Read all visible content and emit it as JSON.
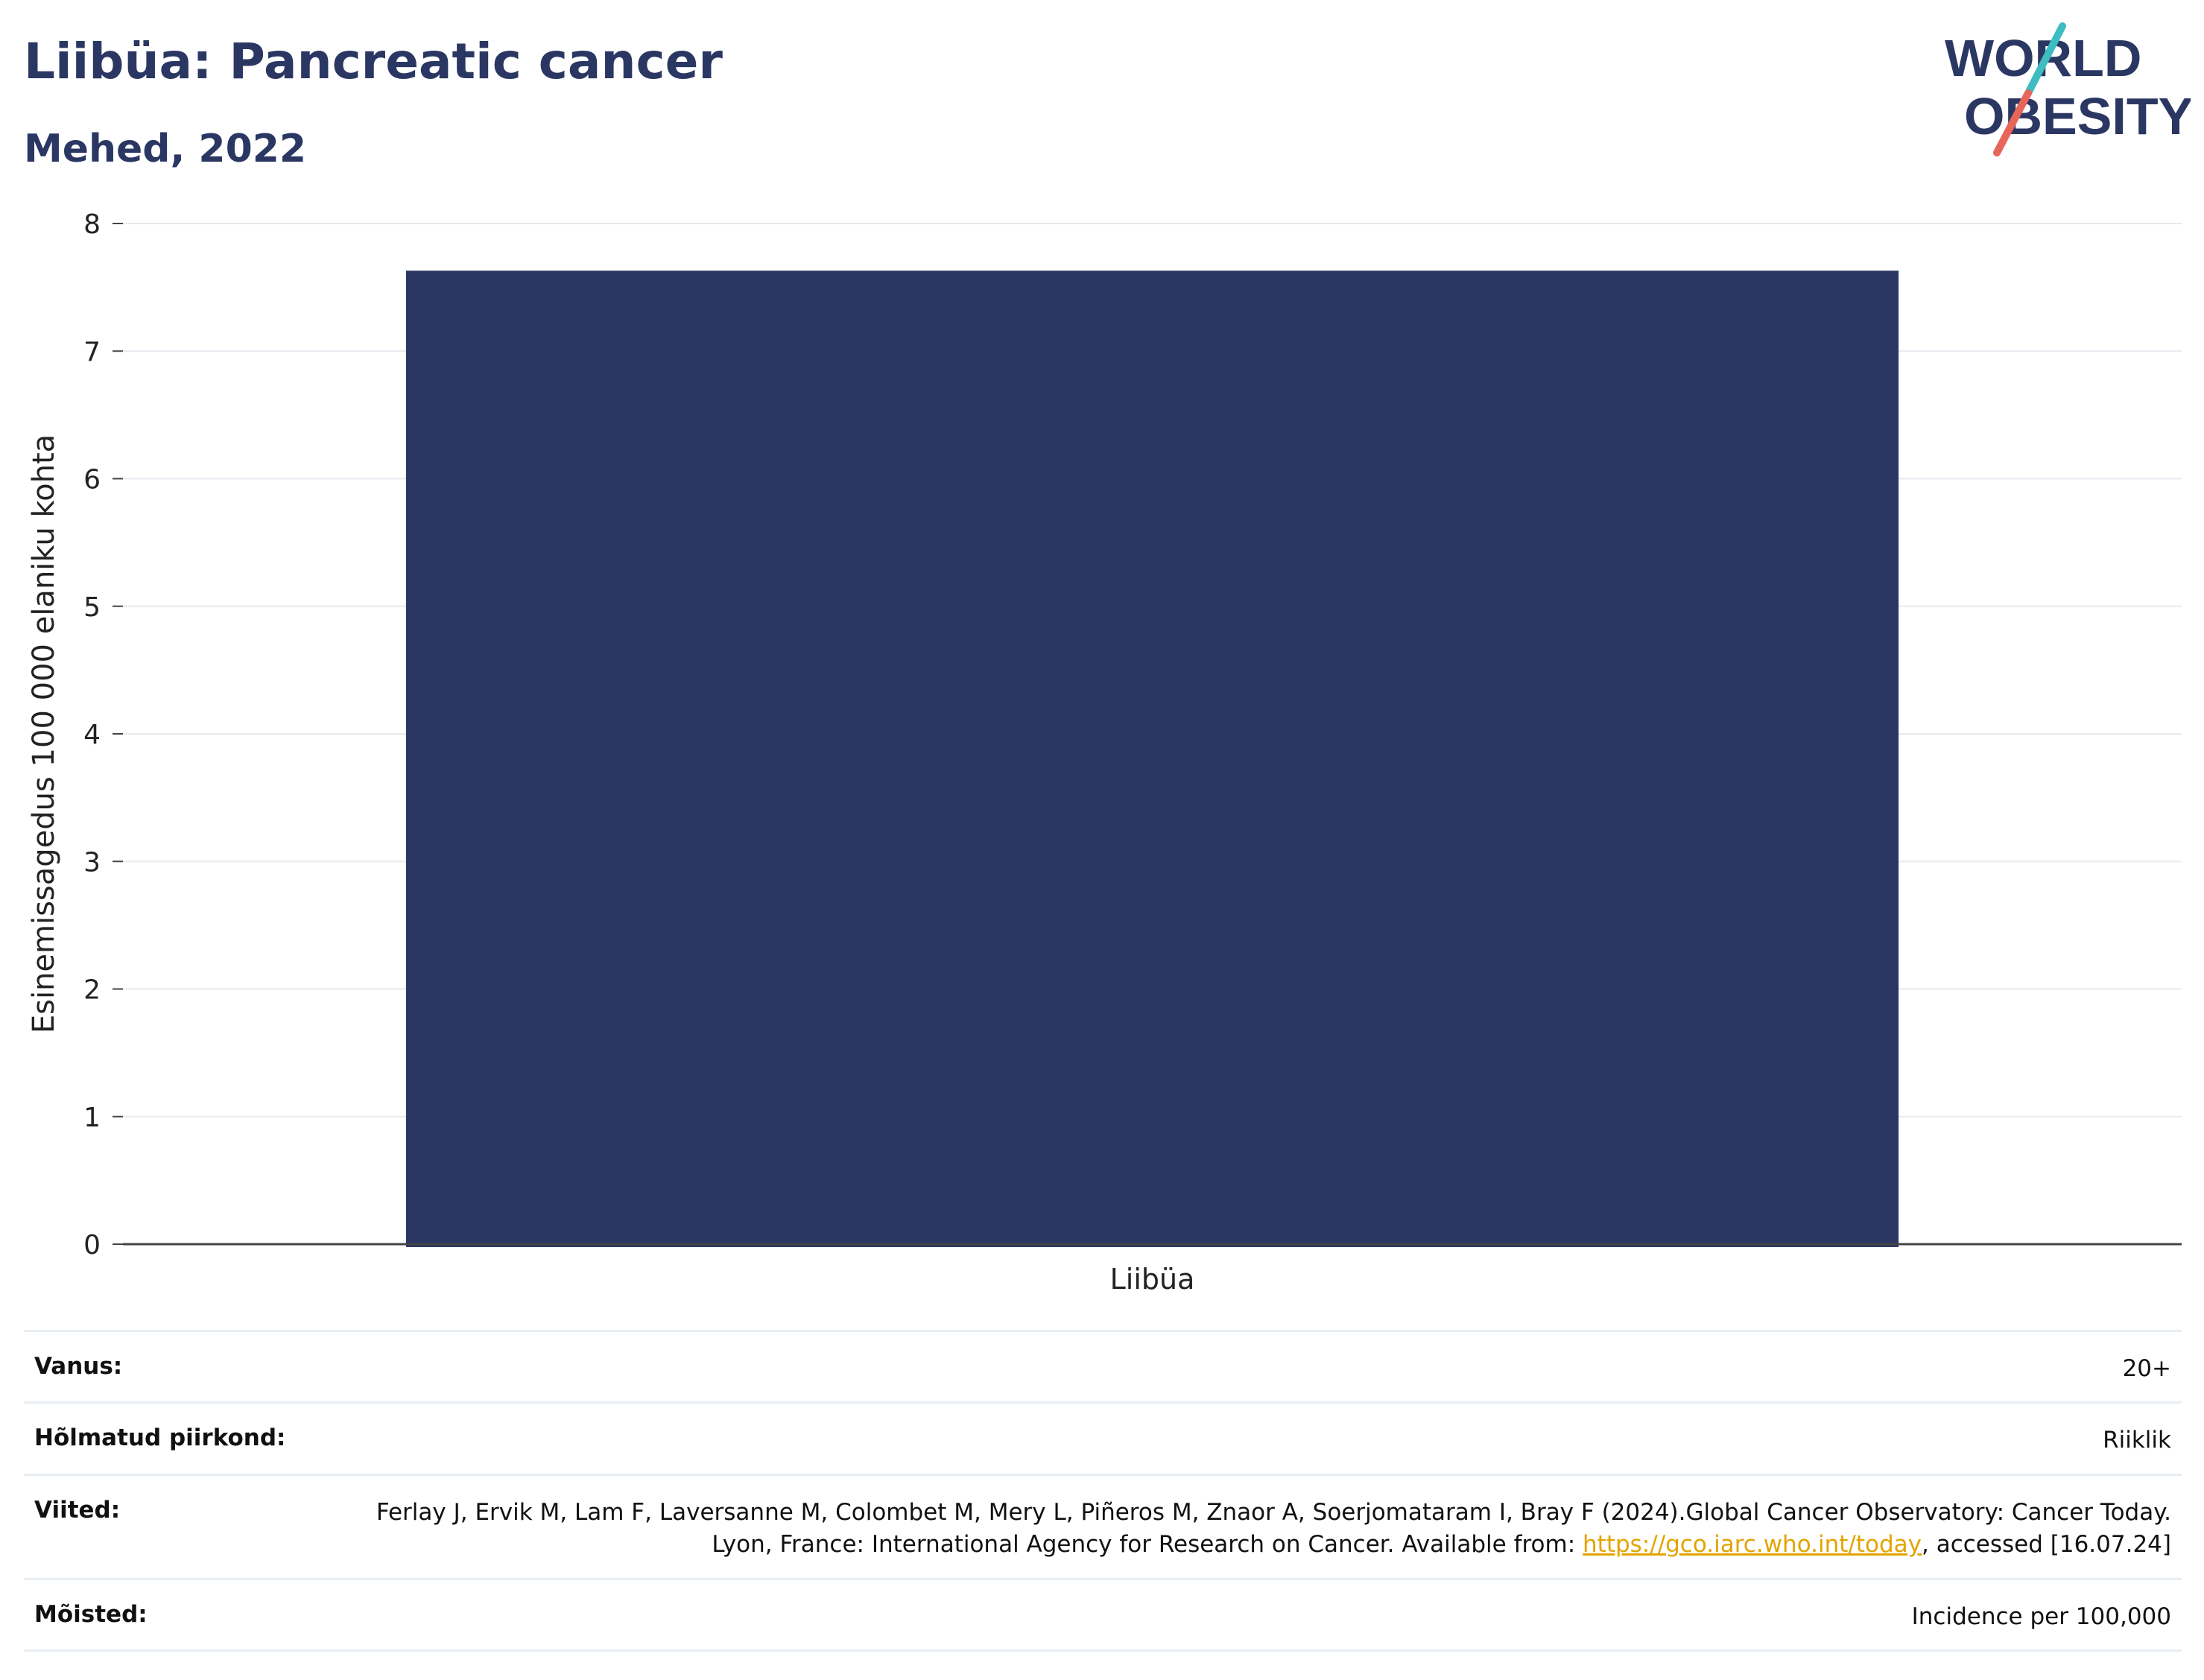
{
  "header": {
    "title": "Liibüa: Pancreatic cancer",
    "subtitle": "Mehed, 2022"
  },
  "logo": {
    "line1": "WORLD",
    "line2": "OBESITY"
  },
  "colors": {
    "bar": "#2b3763",
    "title": "#2b3763",
    "axis": "#444444",
    "grid": "#e6ebf0",
    "link": "#e3a400",
    "logo_teal": "#3dbcc1",
    "logo_red": "#e8655a"
  },
  "chart_data": {
    "type": "bar",
    "categories": [
      "Liibüa"
    ],
    "values": [
      7.63
    ],
    "title": "Liibüa: Pancreatic cancer",
    "subtitle": "Mehed, 2022",
    "xlabel": "",
    "ylabel": "Esinemissagedus 100 000 elaniku kohta",
    "ylim": [
      0,
      8
    ],
    "yticks": [
      "0",
      "1",
      "2",
      "3",
      "4",
      "5",
      "6",
      "7",
      "8"
    ],
    "grid": true,
    "legend": "none"
  },
  "meta": {
    "age_label": "Vanus:",
    "age_value": "20+",
    "area_label": "Hõlmatud piirkond:",
    "area_value": "Riiklik",
    "ref_label": "Viited:",
    "ref_text_1": "Ferlay J, Ervik M, Lam F, Laversanne M, Colombet M, Mery L, Piñeros M, Znaor A, Soerjomataram I, Bray F (2024).Global Cancer Observatory: Cancer Today. Lyon, France: International Agency for Research on Cancer. Available from: ",
    "ref_link": "https://gco.iarc.who.int/today",
    "ref_text_2": ", accessed [16.07.24]",
    "def_label": "Mõisted:",
    "def_value": "Incidence per 100,000"
  }
}
